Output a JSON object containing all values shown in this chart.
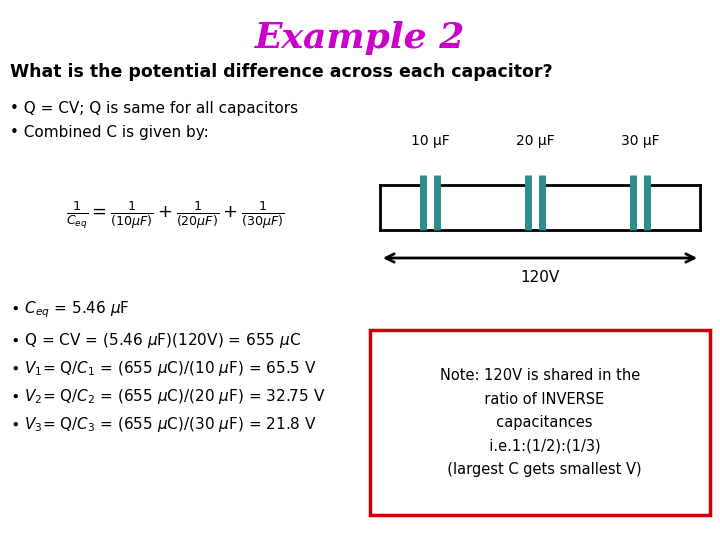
{
  "title": "Example 2",
  "title_color": "#cc00cc",
  "title_fontsize": 26,
  "bg_color": "#ffffff",
  "question": "What is the potential difference across each capacitor?",
  "question_fontsize": 12.5,
  "bullet1": "• Q = CV; Q is same for all capacitors",
  "bullet2": "• Combined C is given by:",
  "cap_labels": [
    "10 μF",
    "20 μF",
    "30 μF"
  ],
  "voltage_label": "120V",
  "cap_color": "#2e8b8b",
  "wire_color": "#000000",
  "text_color": "#000000",
  "note_box_color": "#cc0000",
  "note_text": "Note: 120V is shared in the\n  ratio of INVERSE\n  capacitances\n  i.e.1:(1/2):(1/3)\n  (largest C gets smallest V)"
}
